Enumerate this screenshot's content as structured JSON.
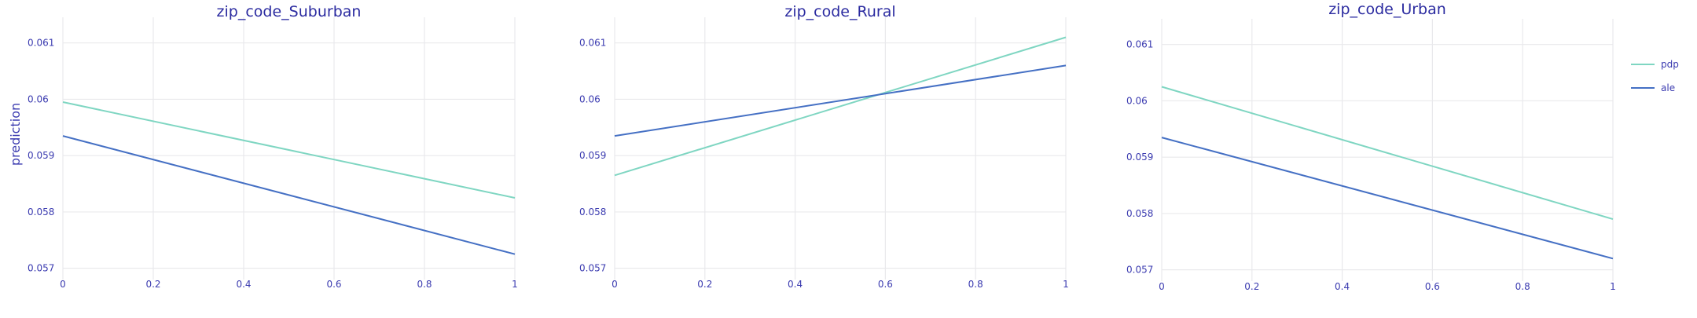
{
  "chart_data": [
    {
      "type": "line",
      "title": "zip_code_Suburban",
      "ylabel": "prediction",
      "xlabel": "",
      "xlim": [
        0,
        1
      ],
      "ylim": [
        0.0568,
        0.0614
      ],
      "x_ticks": [
        0,
        0.2,
        0.4,
        0.6,
        0.8,
        1
      ],
      "x_tick_labels": [
        "0",
        "0.2",
        "0.4",
        "0.6",
        "0.8",
        "1"
      ],
      "y_ticks": [
        0.057,
        0.058,
        0.059,
        0.06,
        0.061
      ],
      "y_tick_labels": [
        "0.057",
        "0.058",
        "0.059",
        "0.06",
        "0.061"
      ],
      "x": [
        0,
        1
      ],
      "series": [
        {
          "name": "pdp",
          "values": [
            0.05995,
            0.05825
          ]
        },
        {
          "name": "ale",
          "values": [
            0.05935,
            0.05725
          ]
        }
      ]
    },
    {
      "type": "line",
      "title": "zip_code_Rural",
      "ylabel": "",
      "xlabel": "",
      "xlim": [
        0,
        1
      ],
      "ylim": [
        0.0568,
        0.0614
      ],
      "x_ticks": [
        0,
        0.2,
        0.4,
        0.6,
        0.8,
        1
      ],
      "x_tick_labels": [
        "0",
        "0.2",
        "0.4",
        "0.6",
        "0.8",
        "1"
      ],
      "y_ticks": [
        0.057,
        0.058,
        0.059,
        0.06,
        0.061
      ],
      "y_tick_labels": [
        "0.057",
        "0.058",
        "0.059",
        "0.06",
        "0.061"
      ],
      "x": [
        0,
        1
      ],
      "series": [
        {
          "name": "pdp",
          "values": [
            0.05865,
            0.0611
          ]
        },
        {
          "name": "ale",
          "values": [
            0.05935,
            0.0606
          ]
        }
      ]
    },
    {
      "type": "line",
      "title": "zip_code_Urban",
      "ylabel": "",
      "xlabel": "",
      "xlim": [
        0,
        1
      ],
      "ylim": [
        0.0568,
        0.0614
      ],
      "x_ticks": [
        0,
        0.2,
        0.4,
        0.6,
        0.8,
        1
      ],
      "x_tick_labels": [
        "0",
        "0.2",
        "0.4",
        "0.6",
        "0.8",
        "1"
      ],
      "y_ticks": [
        0.057,
        0.058,
        0.059,
        0.06,
        0.061
      ],
      "y_tick_labels": [
        "0.057",
        "0.058",
        "0.059",
        "0.06",
        "0.061"
      ],
      "x": [
        0,
        1
      ],
      "series": [
        {
          "name": "pdp",
          "values": [
            0.06025,
            0.0579
          ]
        },
        {
          "name": "ale",
          "values": [
            0.05935,
            0.0572
          ]
        }
      ]
    }
  ],
  "legend": {
    "placement": "top-right",
    "items": [
      {
        "name": "pdp",
        "color": "#7fd6c2"
      },
      {
        "name": "ale",
        "color": "#4570c4"
      }
    ]
  },
  "colors": {
    "pdp": "#7fd6c2",
    "ale": "#4570c4",
    "grid": "#e9e9ec",
    "text": "#3b3bb0",
    "title": "#2b2ba0"
  }
}
